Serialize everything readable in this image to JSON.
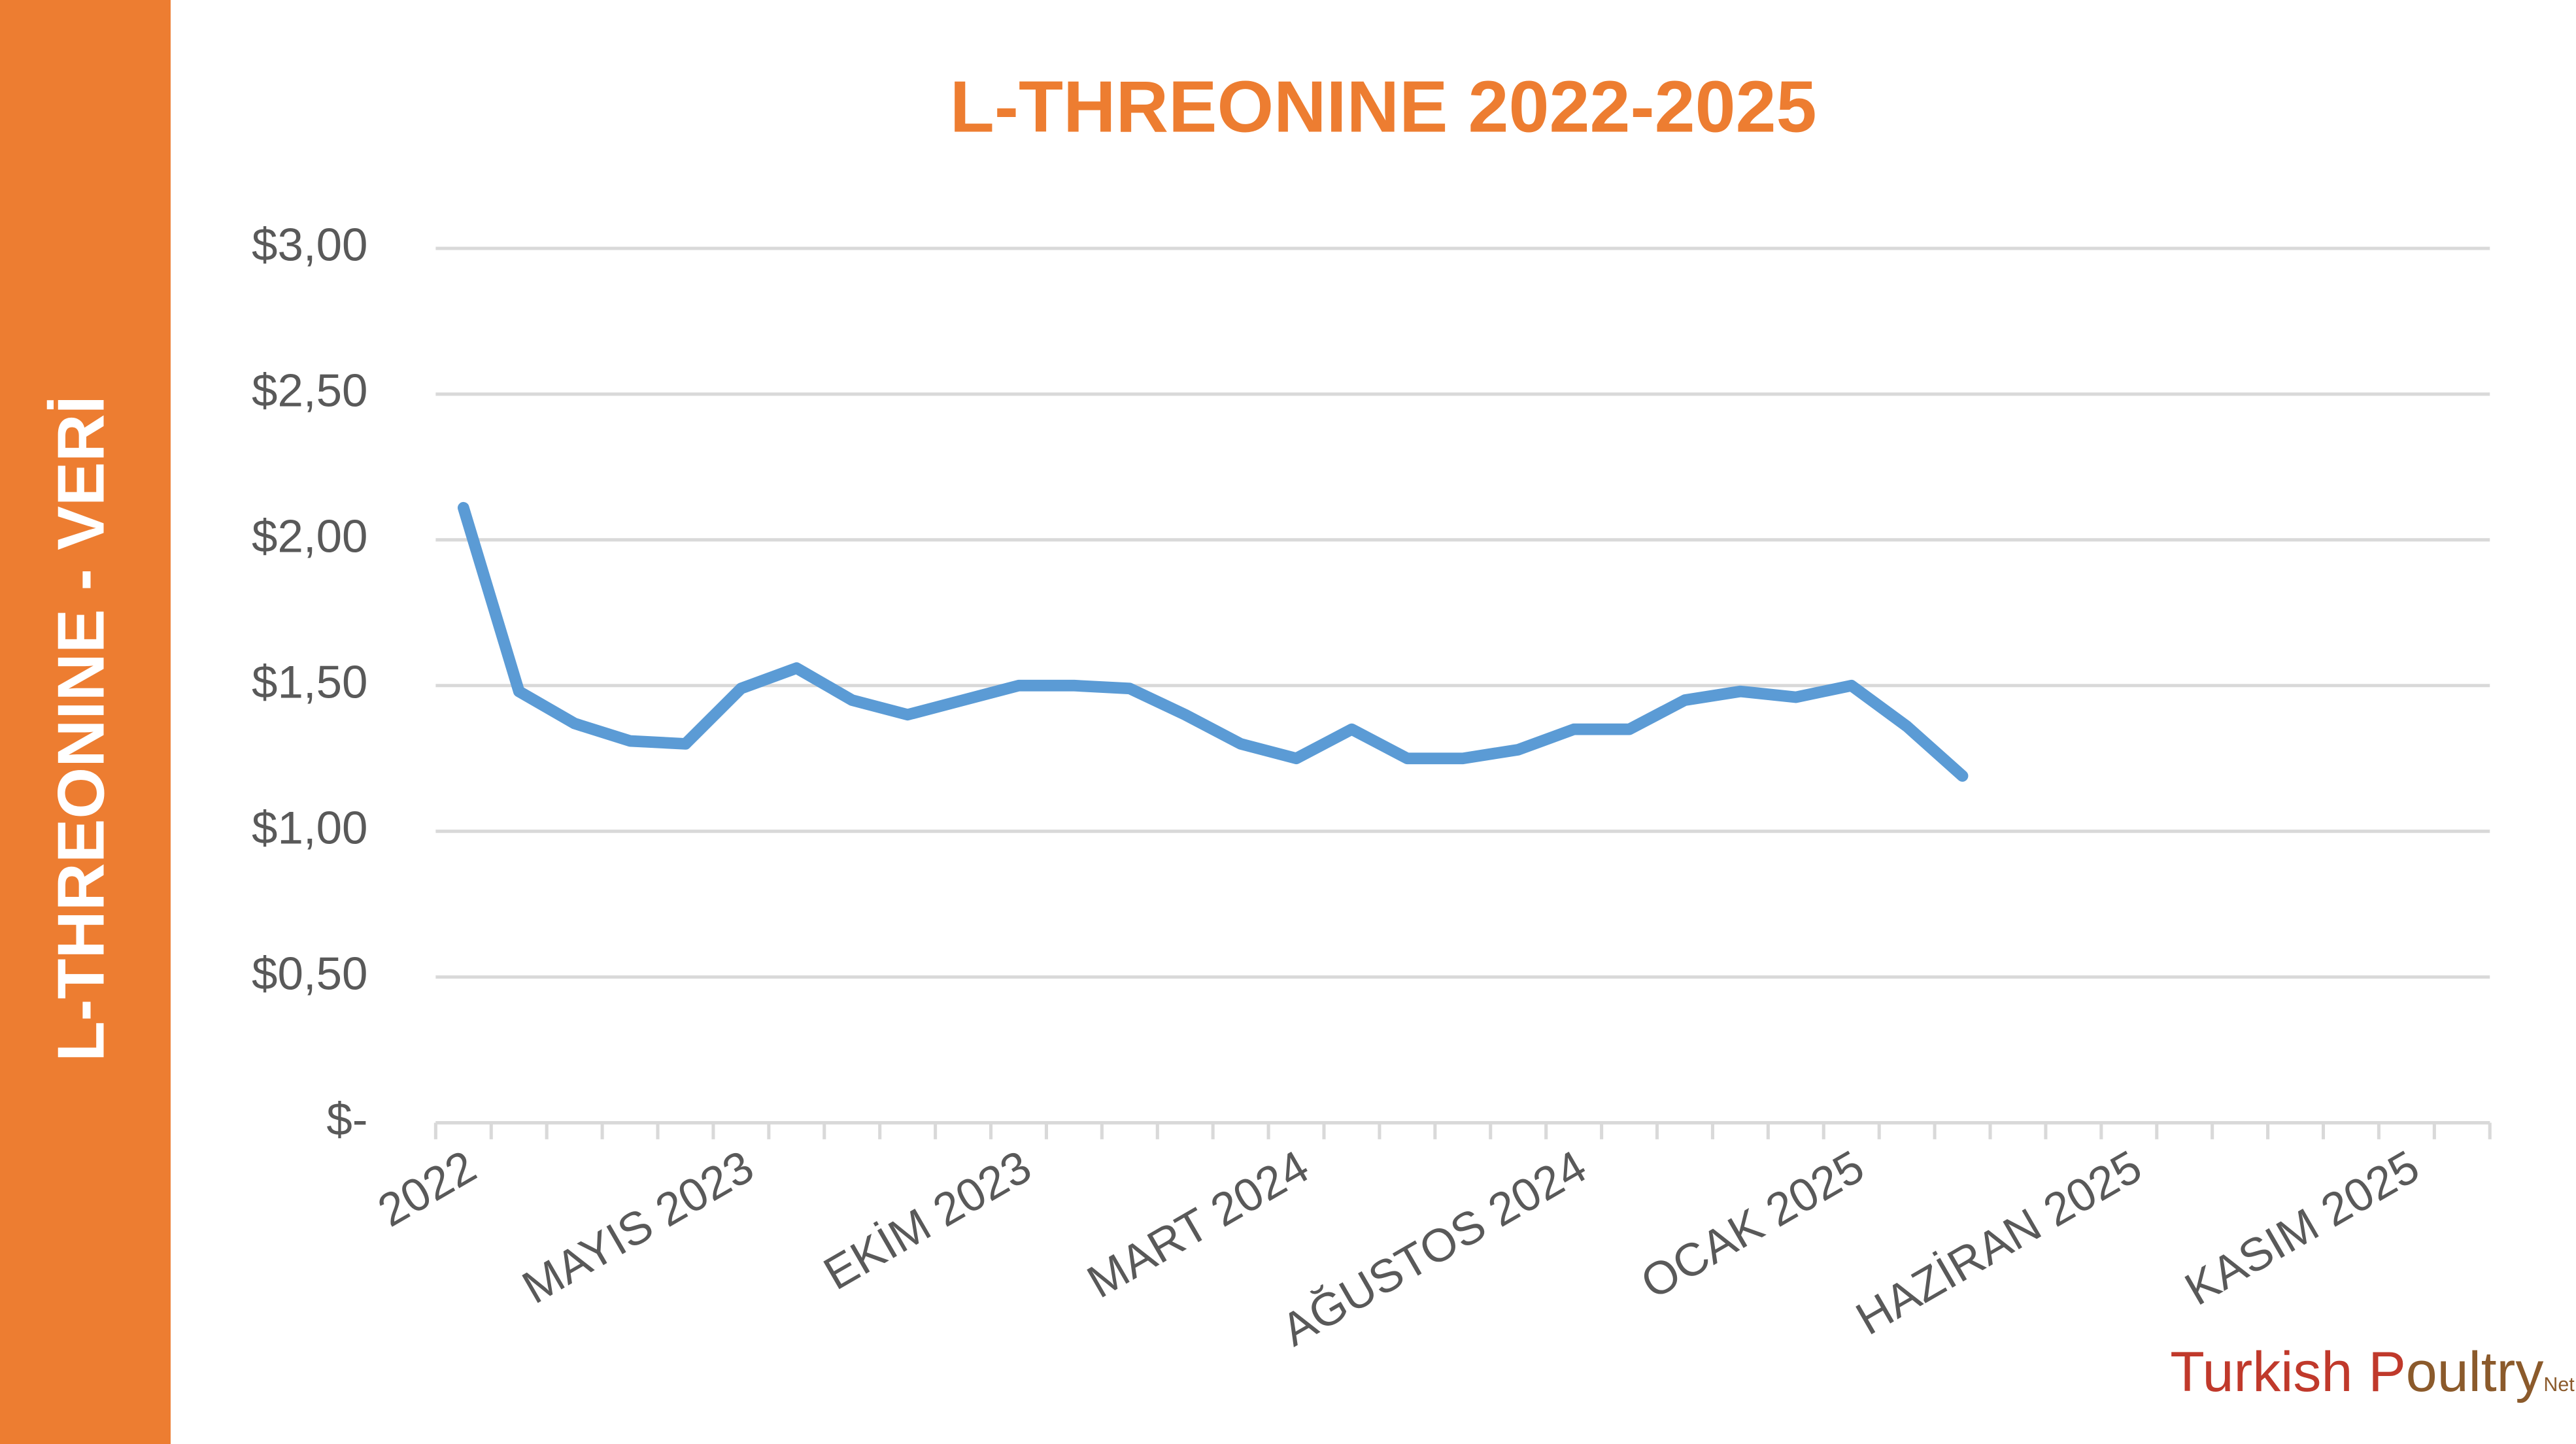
{
  "sidebar_title": "L-THREONINE - VERİ",
  "logo": {
    "part1": "Turkish P",
    "part2": "oultry",
    "part3": "Net"
  },
  "chart_data": {
    "type": "line",
    "title": "L-THREONINE 2022-2025",
    "categories": [
      "2022",
      null,
      null,
      null,
      null,
      "MAYIS 2023",
      null,
      null,
      null,
      null,
      "EKİM 2023",
      null,
      null,
      null,
      null,
      "MART 2024",
      null,
      null,
      null,
      null,
      "AĞUSTOS 2024",
      null,
      null,
      null,
      null,
      "OCAK 2025",
      null,
      null,
      null,
      null,
      "HAZİRAN 2025",
      null,
      null,
      null,
      null,
      "KASIM 2025",
      null
    ],
    "series": [
      {
        "name": "L-THREONINE",
        "color": "#5b9bd5",
        "values": [
          2.11,
          1.48,
          1.37,
          1.31,
          1.3,
          1.49,
          1.56,
          1.45,
          1.4,
          1.45,
          1.5,
          1.5,
          1.49,
          1.4,
          1.3,
          1.25,
          1.35,
          1.25,
          1.25,
          1.28,
          1.35,
          1.35,
          1.45,
          1.48,
          1.46,
          1.5,
          1.36,
          1.19,
          null,
          null,
          null,
          null,
          null,
          null,
          null,
          null,
          null
        ]
      }
    ],
    "ylim": [
      0,
      3
    ],
    "yticks": [
      {
        "value": 0,
        "label": "$-"
      },
      {
        "value": 0.5,
        "label": "$0,50"
      },
      {
        "value": 1,
        "label": "$1,00"
      },
      {
        "value": 1.5,
        "label": "$1,50"
      },
      {
        "value": 2,
        "label": "$2,00"
      },
      {
        "value": 2.5,
        "label": "$2,50"
      },
      {
        "value": 3,
        "label": "$3,00"
      }
    ],
    "grid": true
  }
}
